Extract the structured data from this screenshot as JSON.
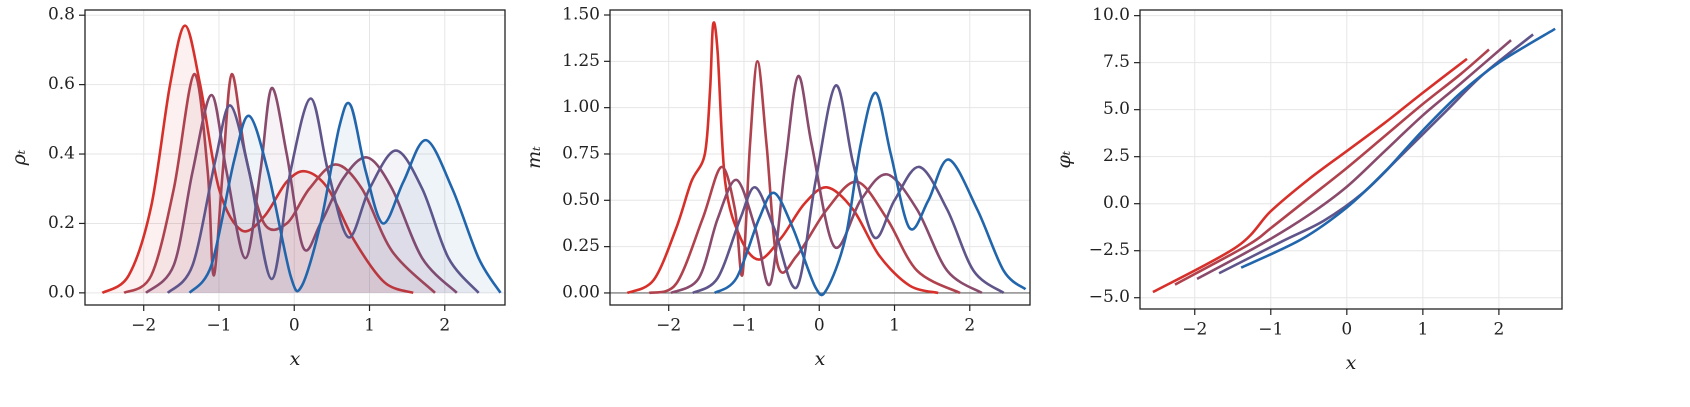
{
  "chart_data": [
    {
      "type": "line",
      "xlabel": "x",
      "ylabel": "ρₜ",
      "grid": true,
      "fill": true,
      "xlim": [
        -2.78,
        2.8
      ],
      "ylim": [
        -0.035,
        0.815
      ],
      "xticks": [
        {
          "value": -2,
          "label": "−2"
        },
        {
          "value": -1,
          "label": "−1"
        },
        0,
        1,
        2
      ],
      "yticks": [
        {
          "value": 0,
          "label": "0.0"
        },
        0.2,
        0.4,
        0.6,
        0.8
      ],
      "series": [
        {
          "color": "#d7302a",
          "x": [
            -2.55,
            -2.2,
            -1.9,
            -1.65,
            -1.45,
            -1.25,
            -1.0,
            -0.7,
            -0.4,
            -0.1,
            0.15,
            0.45,
            0.8,
            1.2,
            1.58
          ],
          "values": [
            0.0,
            0.05,
            0.25,
            0.6,
            0.77,
            0.6,
            0.3,
            0.18,
            0.22,
            0.32,
            0.35,
            0.3,
            0.15,
            0.03,
            0.0
          ]
        },
        {
          "color": "#b0424e",
          "x": [
            -2.26,
            -1.9,
            -1.6,
            -1.33,
            -1.15,
            -1.07,
            -0.95,
            -0.83,
            -0.65,
            -0.4,
            -0.1,
            0.2,
            0.55,
            0.9,
            1.3,
            1.87
          ],
          "values": [
            0.0,
            0.05,
            0.3,
            0.63,
            0.35,
            0.05,
            0.35,
            0.63,
            0.4,
            0.2,
            0.2,
            0.3,
            0.37,
            0.3,
            0.12,
            0.0
          ]
        },
        {
          "color": "#8a4a6c",
          "x": [
            -1.97,
            -1.6,
            -1.35,
            -1.1,
            -0.9,
            -0.65,
            -0.45,
            -0.3,
            -0.1,
            0.12,
            0.35,
            0.65,
            0.97,
            1.3,
            1.7,
            2.16
          ],
          "values": [
            0.0,
            0.08,
            0.35,
            0.57,
            0.35,
            0.1,
            0.35,
            0.59,
            0.4,
            0.13,
            0.2,
            0.33,
            0.39,
            0.3,
            0.1,
            0.0
          ]
        },
        {
          "color": "#60558a",
          "x": [
            -1.68,
            -1.35,
            -1.05,
            -0.85,
            -0.6,
            -0.3,
            -0.05,
            0.22,
            0.45,
            0.72,
            1.0,
            1.35,
            1.7,
            2.05,
            2.45
          ],
          "values": [
            0.0,
            0.08,
            0.38,
            0.54,
            0.35,
            0.04,
            0.35,
            0.56,
            0.35,
            0.16,
            0.3,
            0.41,
            0.3,
            0.1,
            0.0
          ]
        },
        {
          "color": "#2166ac",
          "x": [
            -1.39,
            -1.1,
            -0.8,
            -0.6,
            -0.35,
            -0.05,
            0.1,
            0.35,
            0.6,
            0.75,
            0.95,
            1.18,
            1.45,
            1.75,
            2.1,
            2.45,
            2.74
          ],
          "values": [
            0.0,
            0.08,
            0.38,
            0.51,
            0.35,
            0.05,
            0.02,
            0.2,
            0.48,
            0.54,
            0.35,
            0.2,
            0.32,
            0.44,
            0.3,
            0.1,
            0.0
          ]
        }
      ]
    },
    {
      "type": "line",
      "xlabel": "x",
      "ylabel": "mₜ",
      "grid": true,
      "zero_line": true,
      "xlim": [
        -2.78,
        2.8
      ],
      "ylim": [
        -0.065,
        1.527
      ],
      "xticks": [
        {
          "value": -2,
          "label": "−2"
        },
        {
          "value": -1,
          "label": "−1"
        },
        0,
        1,
        2
      ],
      "yticks": [
        {
          "value": 0,
          "label": "0.00"
        },
        {
          "value": 0.25,
          "label": "0.25"
        },
        {
          "value": 0.5,
          "label": "0.50"
        },
        {
          "value": 0.75,
          "label": "0.75"
        },
        {
          "value": 1,
          "label": "1.00"
        },
        {
          "value": 1.25,
          "label": "1.25"
        },
        {
          "value": 1.5,
          "label": "1.50"
        }
      ],
      "series": [
        {
          "color": "#d7302a",
          "x": [
            -2.55,
            -2.2,
            -1.9,
            -1.7,
            -1.52,
            -1.45,
            -1.41,
            -1.35,
            -1.25,
            -1.05,
            -0.8,
            -0.5,
            -0.2,
            0.1,
            0.45,
            0.8,
            1.2,
            1.58
          ],
          "values": [
            0.0,
            0.07,
            0.35,
            0.6,
            0.75,
            1.1,
            1.45,
            1.3,
            0.6,
            0.3,
            0.18,
            0.3,
            0.48,
            0.57,
            0.45,
            0.2,
            0.04,
            0.0
          ]
        },
        {
          "color": "#b0424e",
          "x": [
            -2.26,
            -1.9,
            -1.55,
            -1.3,
            -1.12,
            -1.02,
            -0.92,
            -0.82,
            -0.7,
            -0.55,
            -0.3,
            0.1,
            0.5,
            0.9,
            1.3,
            1.87
          ],
          "values": [
            0.0,
            0.05,
            0.4,
            0.68,
            0.45,
            0.1,
            0.8,
            1.25,
            0.8,
            0.15,
            0.2,
            0.45,
            0.6,
            0.4,
            0.12,
            0.0
          ]
        },
        {
          "color": "#8a4a6c",
          "x": [
            -1.97,
            -1.6,
            -1.35,
            -1.1,
            -0.85,
            -0.65,
            -0.45,
            -0.28,
            -0.1,
            0.2,
            0.55,
            0.9,
            1.3,
            1.7,
            2.16
          ],
          "values": [
            0.0,
            0.08,
            0.4,
            0.61,
            0.35,
            0.05,
            0.7,
            1.17,
            0.8,
            0.25,
            0.5,
            0.64,
            0.45,
            0.12,
            0.0
          ]
        },
        {
          "color": "#60558a",
          "x": [
            -1.68,
            -1.35,
            -1.05,
            -0.85,
            -0.6,
            -0.3,
            -0.05,
            0.22,
            0.45,
            0.73,
            1.0,
            1.33,
            1.7,
            2.05,
            2.45
          ],
          "values": [
            0.0,
            0.08,
            0.4,
            0.57,
            0.35,
            0.03,
            0.6,
            1.12,
            0.7,
            0.3,
            0.5,
            0.68,
            0.45,
            0.12,
            0.0
          ]
        },
        {
          "color": "#2166ac",
          "x": [
            -1.39,
            -1.1,
            -0.8,
            -0.6,
            -0.35,
            -0.05,
            0.1,
            0.35,
            0.55,
            0.75,
            0.95,
            1.2,
            1.45,
            1.72,
            2.1,
            2.45,
            2.74
          ],
          "values": [
            0.0,
            0.08,
            0.4,
            0.54,
            0.35,
            0.03,
            0.02,
            0.3,
            0.8,
            1.08,
            0.75,
            0.35,
            0.5,
            0.72,
            0.45,
            0.12,
            0.02
          ]
        }
      ]
    },
    {
      "type": "line",
      "xlabel": "x",
      "ylabel": "φₜ",
      "grid": true,
      "xlim": [
        -2.72,
        2.83
      ],
      "ylim": [
        -5.6,
        10.3
      ],
      "xticks": [
        {
          "value": -2,
          "label": "−2"
        },
        {
          "value": -1,
          "label": "−1"
        },
        0,
        1,
        2
      ],
      "yticks": [
        {
          "value": -5,
          "label": "−5.0"
        },
        {
          "value": -2.5,
          "label": "−2.5"
        },
        {
          "value": 0,
          "label": "0.0"
        },
        2.5,
        {
          "value": 5,
          "label": "5.0"
        },
        7.5,
        {
          "value": 10,
          "label": "10.0"
        }
      ],
      "series": [
        {
          "color": "#d7302a",
          "x": [
            -2.55,
            -1.45,
            -1.0,
            -0.5,
            0,
            0.5,
            1.0,
            1.58
          ],
          "values": [
            -4.7,
            -2.3,
            -0.4,
            1.3,
            2.8,
            4.3,
            5.9,
            7.7
          ]
        },
        {
          "color": "#b0424e",
          "x": [
            -2.26,
            -1.3,
            -1.0,
            -0.5,
            0,
            0.5,
            1.0,
            1.5,
            1.87
          ],
          "values": [
            -4.3,
            -2.2,
            -1.3,
            0.3,
            1.9,
            3.6,
            5.3,
            6.9,
            8.2
          ]
        },
        {
          "color": "#8a4a6c",
          "x": [
            -1.97,
            -1.1,
            -0.5,
            0,
            0.5,
            1.0,
            1.5,
            2.16
          ],
          "values": [
            -4.0,
            -2.1,
            -0.6,
            0.9,
            2.8,
            4.7,
            6.4,
            8.7
          ]
        },
        {
          "color": "#60558a",
          "x": [
            -1.68,
            -0.85,
            -0.3,
            0.22,
            0.7,
            1.3,
            1.8,
            2.45
          ],
          "values": [
            -3.7,
            -2.0,
            -0.9,
            0.6,
            2.5,
            4.9,
            6.9,
            9.0
          ]
        },
        {
          "color": "#2166ac",
          "x": [
            -1.39,
            -0.6,
            0,
            0.5,
            1.0,
            1.5,
            2.0,
            2.74
          ],
          "values": [
            -3.4,
            -1.9,
            -0.2,
            1.7,
            3.9,
            5.9,
            7.5,
            9.3
          ]
        }
      ]
    }
  ]
}
